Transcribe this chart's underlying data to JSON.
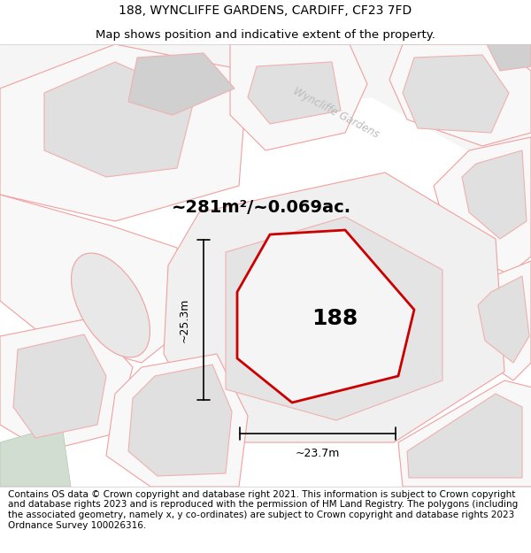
{
  "title_line1": "188, WYNCLIFFE GARDENS, CARDIFF, CF23 7FD",
  "title_line2": "Map shows position and indicative extent of the property.",
  "footer_text": "Contains OS data © Crown copyright and database right 2021. This information is subject to Crown copyright and database rights 2023 and is reproduced with the permission of HM Land Registry. The polygons (including the associated geometry, namely x, y co-ordinates) are subject to Crown copyright and database rights 2023 Ordnance Survey 100026316.",
  "area_text": "~281m²/~0.069ac.",
  "label_188": "188",
  "dim_height": "~25.3m",
  "dim_width": "~23.7m",
  "street_label": "Wyncliffe Gardens",
  "map_bg": "#ffffff",
  "plot_fill": "#f0f0f0",
  "plot_outline": "#cc0000",
  "bldg_fill": "#e0e0e0",
  "bldg_fill2": "#d0d0d0",
  "bldg_edge": "#f0b0b0",
  "parcel_edge": "#f0a0a0",
  "title_fontsize": 10,
  "footer_fontsize": 7.5,
  "street_color": "#bbbbbb",
  "dim_color": "#000000",
  "area_fontsize": 14,
  "label_fontsize": 18,
  "green_fill": "#d0ddd0"
}
